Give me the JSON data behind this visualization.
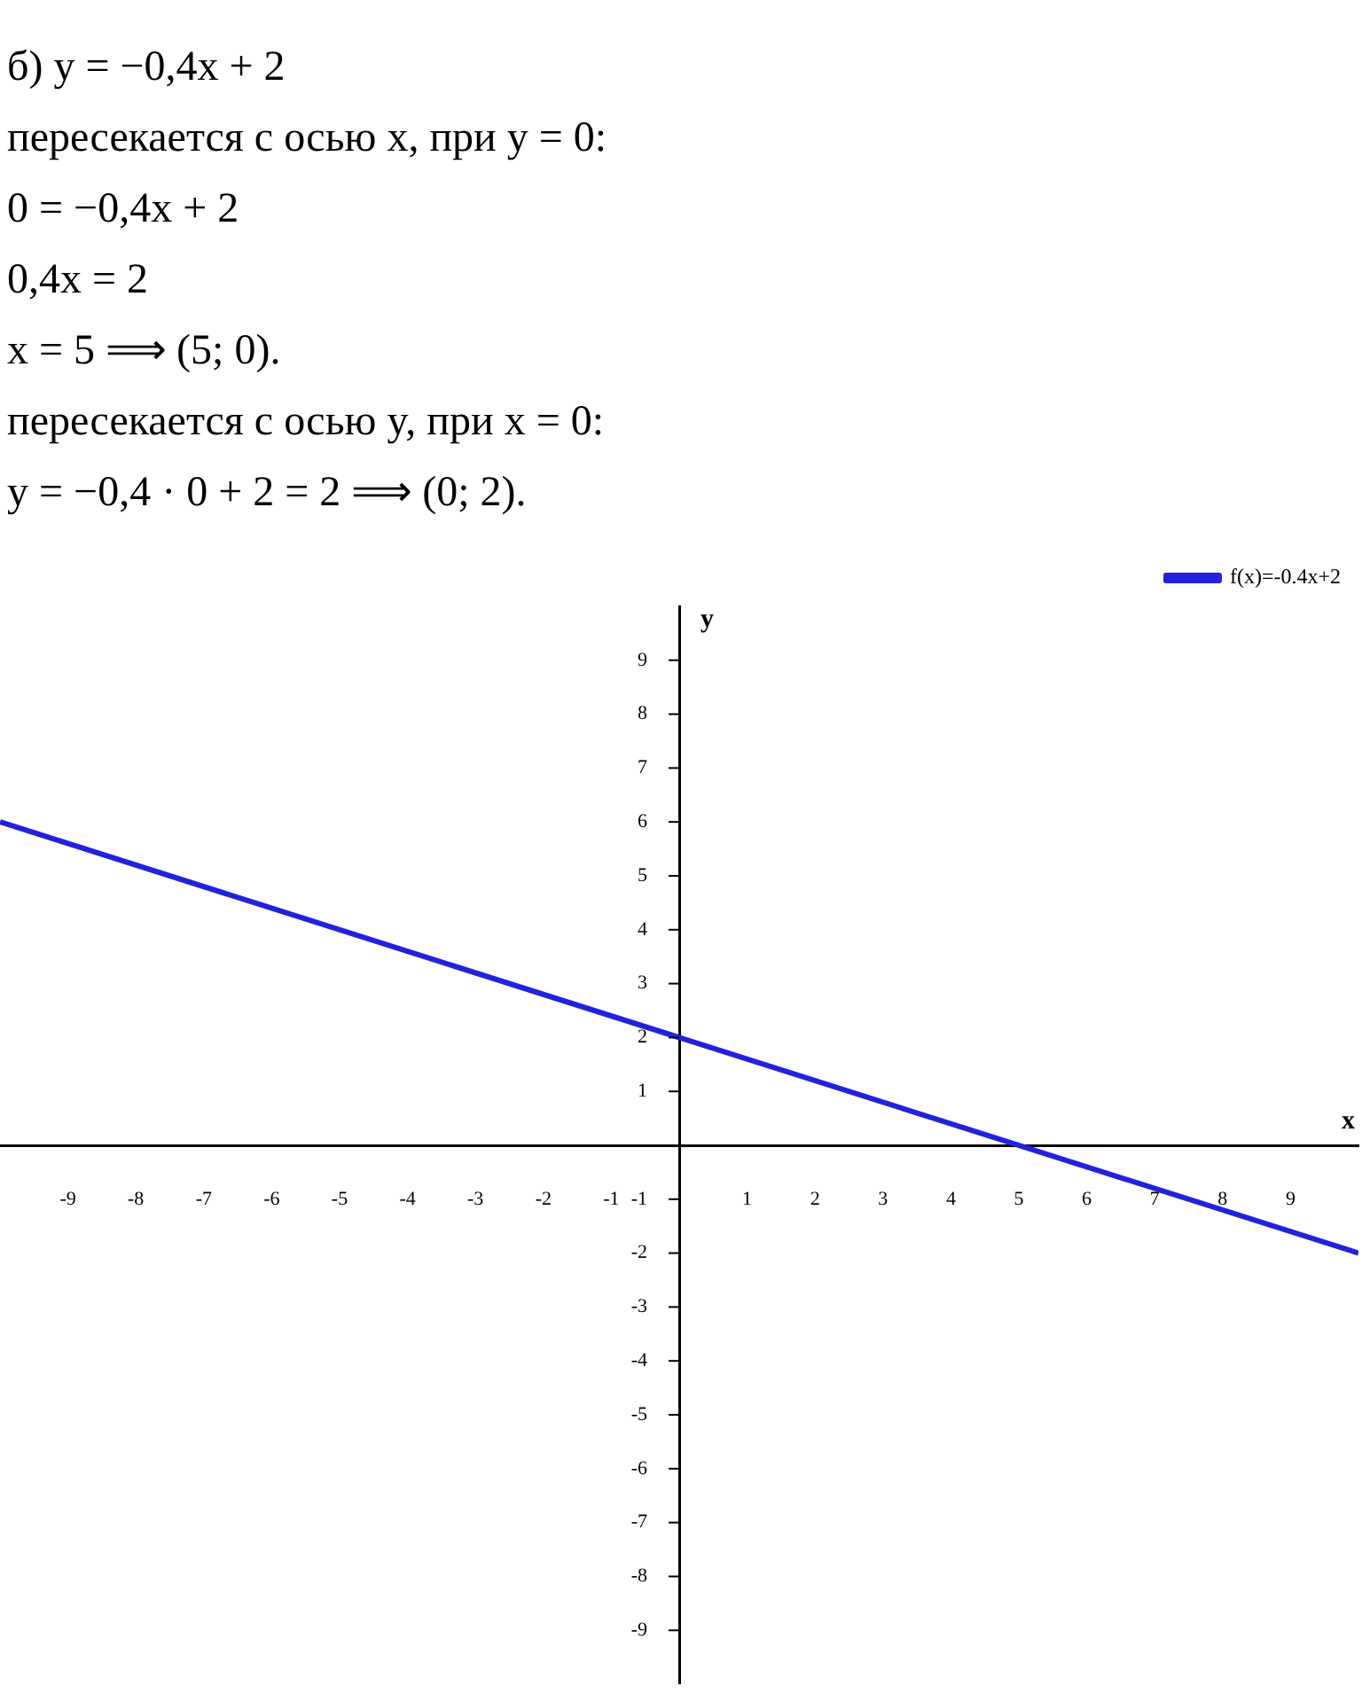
{
  "chart_data": {
    "type": "line",
    "xlabel": "x",
    "ylabel": "y",
    "annotations": [
      "б) y = −0,4x + 2",
      "пересекается с осью x, при y = 0:",
      "0 = −0,4x + 2",
      "0,4x = 2",
      "x = 5    ⟹    (5; 0).",
      "пересекается с осью y, при x = 0:",
      "y = −0,4 · 0 + 2 = 2    ⟹    (0;  2)."
    ],
    "xlim": [
      -10,
      10
    ],
    "ylim": [
      -10,
      10
    ],
    "xticks": [
      -9,
      -8,
      -7,
      -6,
      -5,
      -4,
      -3,
      -2,
      -1,
      1,
      2,
      3,
      4,
      5,
      6,
      7,
      8,
      9
    ],
    "yticks": [
      -9,
      -8,
      -7,
      -6,
      -5,
      -4,
      -3,
      -2,
      -1,
      1,
      2,
      3,
      4,
      5,
      6,
      7,
      8,
      9
    ],
    "series": [
      {
        "name": "f(x)=-0.4x+2",
        "color": "#2222dd",
        "x": [
          -10,
          10
        ],
        "values": [
          6,
          -2
        ]
      }
    ],
    "grid": false,
    "legend": "top right",
    "marker": "none",
    "line_style": "solid"
  }
}
